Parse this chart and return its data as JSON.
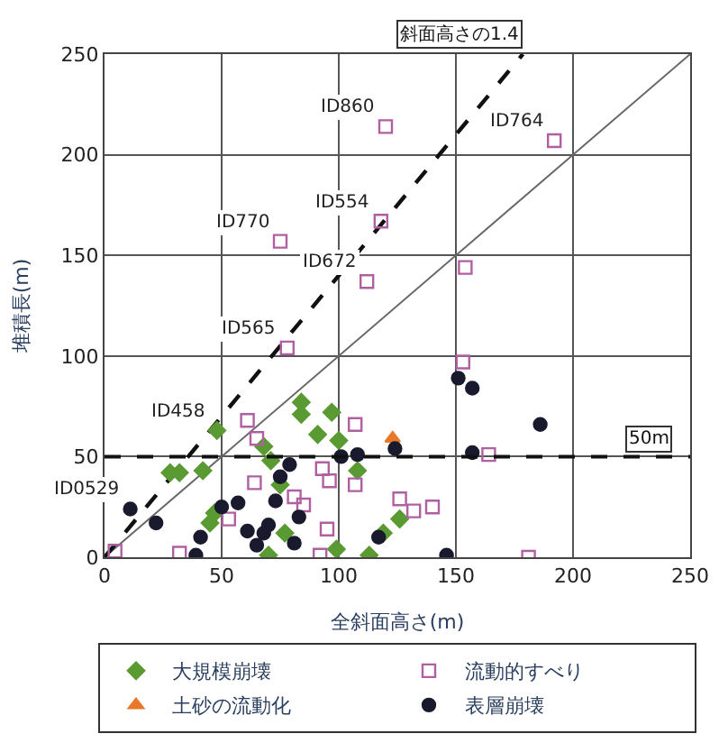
{
  "chart_data": {
    "type": "scatter",
    "xlabel": "全斜面高さ(m)",
    "ylabel": "堆積長(m)",
    "xlim": [
      0,
      250
    ],
    "ylim": [
      0,
      250
    ],
    "xticks": [
      0,
      50,
      100,
      150,
      200,
      250
    ],
    "yticks": [
      0,
      50,
      100,
      150,
      200,
      250
    ],
    "grid": true,
    "legend": "bottom",
    "series": [
      {
        "name": "大規模崩壊",
        "color": "#5a9a32",
        "marker": "diamond",
        "x": [
          48,
          28,
          32,
          42,
          47,
          45,
          84,
          84,
          97,
          91,
          100,
          68,
          71,
          108,
          75,
          77,
          70,
          99,
          113,
          119,
          126
        ],
        "values": [
          63,
          42,
          42,
          43,
          22,
          17,
          77,
          71,
          72,
          61,
          58,
          55,
          48,
          43,
          36,
          12,
          1,
          4,
          1,
          12,
          19
        ]
      },
      {
        "name": "流動的すべり",
        "color": "#b060a0",
        "marker": "square",
        "x": [
          120,
          192,
          118,
          75,
          112,
          154,
          78,
          153,
          61,
          65,
          107,
          164,
          93,
          96,
          64,
          107,
          81,
          85,
          126,
          132,
          140,
          53,
          95,
          92,
          32,
          4.5,
          181
        ],
        "values": [
          214,
          207,
          167,
          157,
          137,
          144,
          104,
          97,
          68,
          59,
          66,
          51,
          44,
          38,
          37,
          36,
          30,
          26,
          29,
          23,
          25,
          19,
          14,
          1,
          2,
          3,
          0
        ]
      },
      {
        "name": "土砂の流動化",
        "color": "#e8782a",
        "marker": "triangle",
        "x": [
          123
        ],
        "values": [
          59
        ]
      },
      {
        "name": "表層崩壊",
        "color": "#1a1a2e",
        "marker": "circle",
        "x": [
          11,
          22,
          39,
          41,
          50,
          57,
          61,
          65,
          68,
          70,
          73,
          75,
          79,
          81,
          83,
          101,
          108,
          117,
          124,
          146,
          151,
          157,
          157,
          186
        ],
        "values": [
          24,
          17,
          1,
          10,
          25,
          27,
          13,
          6,
          12,
          16,
          28,
          40,
          46,
          7,
          20,
          50,
          51,
          10,
          54,
          1,
          89,
          84,
          52,
          66
        ]
      },
      {
        "type": "line",
        "color": "#666666",
        "line_style": "solid",
        "x": [
          0,
          250
        ],
        "values": [
          0,
          250
        ]
      },
      {
        "type": "line",
        "name": "斜面高さの1.4",
        "color": "#111111",
        "line_style": "dashed",
        "x": [
          0,
          178.6
        ],
        "values": [
          0,
          250
        ]
      }
    ],
    "ref_lines": [
      {
        "axis": "y",
        "value": 50,
        "label": "50m",
        "color": "#111111",
        "line_style": "dashed"
      }
    ],
    "annotations": [
      {
        "text": "ID860",
        "x": 120,
        "y": 214
      },
      {
        "text": "ID764",
        "x": 192,
        "y": 207
      },
      {
        "text": "ID554",
        "x": 118,
        "y": 167
      },
      {
        "text": "ID770",
        "x": 75,
        "y": 157
      },
      {
        "text": "ID672",
        "x": 112,
        "y": 137
      },
      {
        "text": "ID565",
        "x": 78,
        "y": 104
      },
      {
        "text": "ID458",
        "x": 48,
        "y": 63
      },
      {
        "text": "ID0529",
        "x": 11,
        "y": 24
      }
    ]
  }
}
